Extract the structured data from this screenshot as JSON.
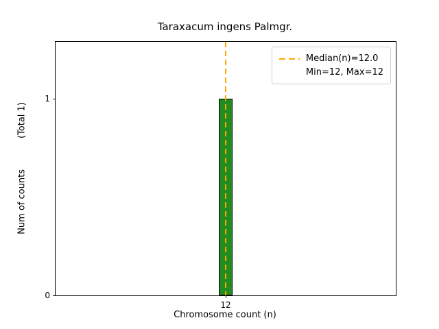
{
  "title": "Taraxacum ingens Palmgr.",
  "axes": {
    "xlabel": "Chromosome count (n)",
    "ylabel": "Num of counts",
    "ylabel_suffix": "(Total 1)",
    "x_ticks": [
      "12"
    ],
    "y_ticks": [
      "0",
      "1"
    ]
  },
  "legend": {
    "line1": "Median(n)=12.0",
    "line2": "Min=12, Max=12"
  },
  "chart_data": {
    "type": "bar",
    "title": "Taraxacum ingens Palmgr.",
    "xlabel": "Chromosome count (n)",
    "ylabel": "Num of counts (Total 1)",
    "categories": [
      12
    ],
    "values": [
      1
    ],
    "total_counts": 1,
    "bar_width": 1,
    "xlim": [
      0,
      24
    ],
    "ylim": [
      0,
      1.29
    ],
    "x_tick_values": [
      12
    ],
    "y_tick_values": [
      0,
      1
    ],
    "median": 12.0,
    "min": 12,
    "max": 12,
    "median_line": {
      "x": 12,
      "style": "dashed"
    },
    "legend": [
      "Median(n)=12.0",
      "Min=12, Max=12"
    ],
    "legend_position": "upper right",
    "grid": false,
    "bar_color": "#228B22",
    "bar_edge_color": "#000000",
    "median_color": "#FFA500"
  }
}
